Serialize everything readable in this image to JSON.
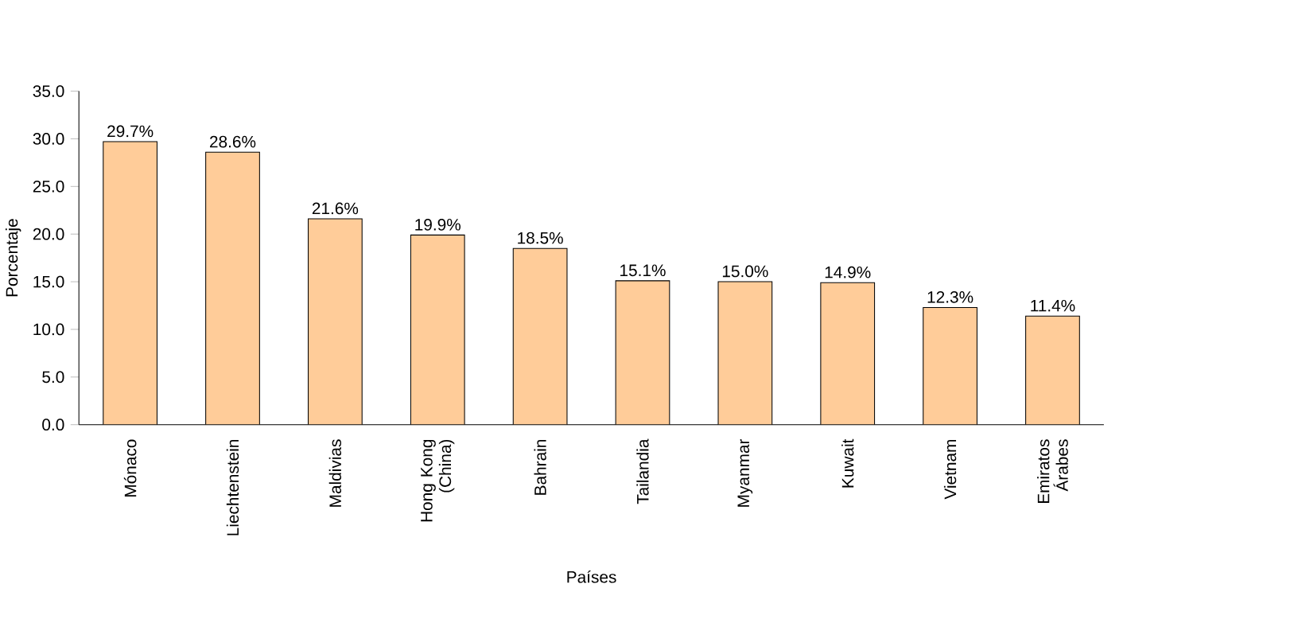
{
  "chart_data": {
    "type": "bar",
    "xlabel": "Países",
    "ylabel": "Porcentaje",
    "categories": [
      "Mónaco",
      "Liechtenstein",
      "Maldivias",
      "Hong Kong (China)",
      "Bahrain",
      "Tailandia",
      "Myanmar",
      "Kuwait",
      "Vietnam",
      "Emiratos Árabes"
    ],
    "values": [
      29.7,
      28.6,
      21.6,
      19.9,
      18.5,
      15.1,
      15.0,
      14.9,
      12.3,
      11.4
    ],
    "value_labels": [
      "29.7%",
      "28.6%",
      "21.6%",
      "19.9%",
      "18.5%",
      "15.1%",
      "15.0%",
      "14.9%",
      "12.3%",
      "11.4%"
    ],
    "color": "#ffcc99",
    "ylim": [
      0,
      35
    ],
    "yticks": [
      {
        "value": 0,
        "label": "0.0"
      },
      {
        "value": 5,
        "label": "5.0"
      },
      {
        "value": 10,
        "label": "10.0"
      },
      {
        "value": 15,
        "label": "15.0"
      },
      {
        "value": 20,
        "label": "20.0"
      },
      {
        "value": 25,
        "label": "25.0"
      },
      {
        "value": 30,
        "label": "30.0"
      },
      {
        "value": 35,
        "label": "35.0"
      }
    ],
    "grid": false
  }
}
